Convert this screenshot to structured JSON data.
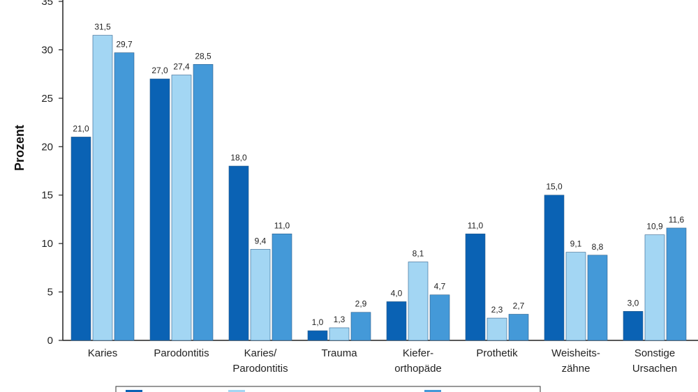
{
  "chart_data": {
    "type": "bar",
    "ylabel": "Prozent",
    "ylim": [
      0,
      35
    ],
    "yticks": [
      0,
      5,
      10,
      15,
      20,
      25,
      30,
      35
    ],
    "grid": false,
    "legend_position": "bottom",
    "categories": [
      [
        "Karies"
      ],
      [
        "Parodontitis"
      ],
      [
        "Karies/",
        "Parodontitis"
      ],
      [
        "Trauma"
      ],
      [
        "Kiefer-",
        "orthopäde"
      ],
      [
        "Prothetik"
      ],
      [
        "Weisheits-",
        "zähne"
      ],
      [
        "Sonstige",
        "Ursachen"
      ]
    ],
    "series": [
      {
        "color": "#0a62b4",
        "values": [
          21.0,
          27.0,
          18.0,
          1.0,
          4.0,
          11.0,
          15.0,
          3.0
        ],
        "labels": [
          "21,0",
          "27,0",
          "18,0",
          "1,0",
          "4,0",
          "11,0",
          "15,0",
          "3,0"
        ]
      },
      {
        "color": "#a3d6f3",
        "values": [
          31.5,
          27.4,
          9.4,
          1.3,
          8.1,
          2.3,
          9.1,
          10.9
        ],
        "labels": [
          "31,5",
          "27,4",
          "9,4",
          "1,3",
          "8,1",
          "2,3",
          "9,1",
          "10,9"
        ]
      },
      {
        "color": "#4499d8",
        "values": [
          29.7,
          28.5,
          11.0,
          2.9,
          4.7,
          2.7,
          8.8,
          11.6
        ],
        "labels": [
          "29,7",
          "28,5",
          "11,0",
          "2,9",
          "4,7",
          "2,7",
          "8,8",
          "11,6"
        ]
      }
    ]
  }
}
